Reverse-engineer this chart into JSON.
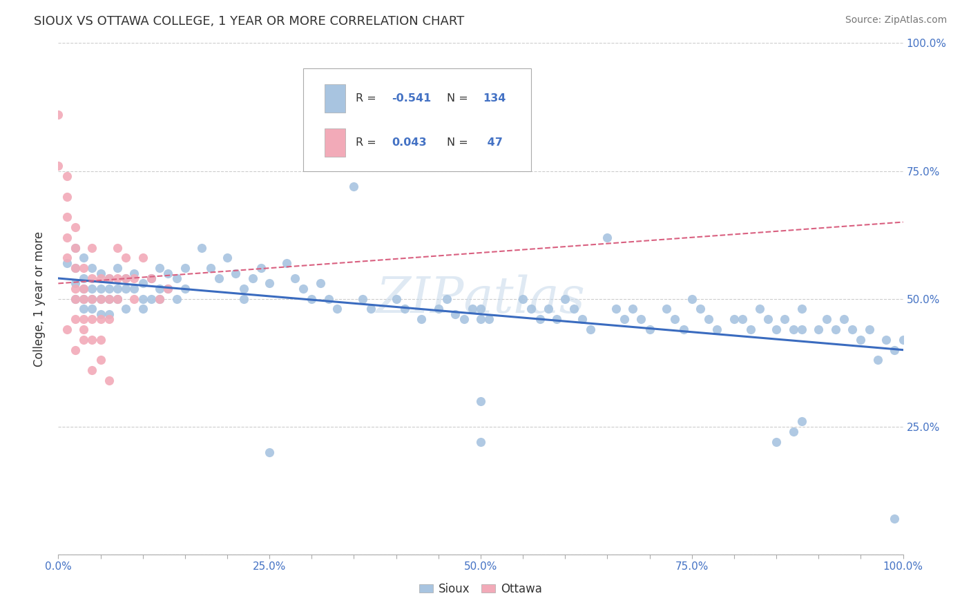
{
  "title": "SIOUX VS OTTAWA COLLEGE, 1 YEAR OR MORE CORRELATION CHART",
  "source": "Source: ZipAtlas.com",
  "ylabel": "College, 1 year or more",
  "xlim": [
    0.0,
    1.0
  ],
  "ylim": [
    0.0,
    1.0
  ],
  "xtick_labels": [
    "0.0%",
    "",
    "",
    "",
    "",
    "25.0%",
    "",
    "",
    "",
    "",
    "50.0%",
    "",
    "",
    "",
    "",
    "75.0%",
    "",
    "",
    "",
    "",
    "100.0%"
  ],
  "xtick_vals": [
    0.0,
    0.05,
    0.1,
    0.15,
    0.2,
    0.25,
    0.3,
    0.35,
    0.4,
    0.45,
    0.5,
    0.55,
    0.6,
    0.65,
    0.7,
    0.75,
    0.8,
    0.85,
    0.9,
    0.95,
    1.0
  ],
  "ytick_labels": [
    "",
    "25.0%",
    "50.0%",
    "75.0%",
    "100.0%"
  ],
  "ytick_vals": [
    0.0,
    0.25,
    0.5,
    0.75,
    1.0
  ],
  "sioux_color": "#a8c4e0",
  "ottawa_color": "#f2aab8",
  "sioux_line_color": "#3a6bbf",
  "ottawa_line_color": "#d96080",
  "background_color": "#ffffff",
  "grid_color": "#cccccc",
  "watermark_color": "#c5d8ea",
  "sioux_points": [
    [
      0.01,
      0.57
    ],
    [
      0.02,
      0.6
    ],
    [
      0.02,
      0.56
    ],
    [
      0.02,
      0.53
    ],
    [
      0.02,
      0.5
    ],
    [
      0.03,
      0.58
    ],
    [
      0.03,
      0.54
    ],
    [
      0.03,
      0.52
    ],
    [
      0.03,
      0.5
    ],
    [
      0.03,
      0.48
    ],
    [
      0.04,
      0.56
    ],
    [
      0.04,
      0.52
    ],
    [
      0.04,
      0.5
    ],
    [
      0.04,
      0.48
    ],
    [
      0.05,
      0.55
    ],
    [
      0.05,
      0.52
    ],
    [
      0.05,
      0.5
    ],
    [
      0.05,
      0.47
    ],
    [
      0.06,
      0.54
    ],
    [
      0.06,
      0.52
    ],
    [
      0.06,
      0.5
    ],
    [
      0.06,
      0.47
    ],
    [
      0.07,
      0.56
    ],
    [
      0.07,
      0.52
    ],
    [
      0.07,
      0.5
    ],
    [
      0.08,
      0.54
    ],
    [
      0.08,
      0.52
    ],
    [
      0.08,
      0.48
    ],
    [
      0.09,
      0.55
    ],
    [
      0.09,
      0.52
    ],
    [
      0.1,
      0.53
    ],
    [
      0.1,
      0.5
    ],
    [
      0.1,
      0.48
    ],
    [
      0.11,
      0.54
    ],
    [
      0.11,
      0.5
    ],
    [
      0.12,
      0.56
    ],
    [
      0.12,
      0.52
    ],
    [
      0.12,
      0.5
    ],
    [
      0.13,
      0.55
    ],
    [
      0.13,
      0.52
    ],
    [
      0.14,
      0.54
    ],
    [
      0.14,
      0.5
    ],
    [
      0.15,
      0.56
    ],
    [
      0.15,
      0.52
    ],
    [
      0.17,
      0.6
    ],
    [
      0.18,
      0.56
    ],
    [
      0.19,
      0.54
    ],
    [
      0.2,
      0.58
    ],
    [
      0.21,
      0.55
    ],
    [
      0.22,
      0.52
    ],
    [
      0.22,
      0.5
    ],
    [
      0.23,
      0.54
    ],
    [
      0.24,
      0.56
    ],
    [
      0.25,
      0.53
    ],
    [
      0.27,
      0.57
    ],
    [
      0.28,
      0.54
    ],
    [
      0.29,
      0.52
    ],
    [
      0.3,
      0.5
    ],
    [
      0.31,
      0.53
    ],
    [
      0.32,
      0.5
    ],
    [
      0.33,
      0.48
    ],
    [
      0.35,
      0.72
    ],
    [
      0.36,
      0.5
    ],
    [
      0.37,
      0.48
    ],
    [
      0.4,
      0.5
    ],
    [
      0.41,
      0.48
    ],
    [
      0.43,
      0.46
    ],
    [
      0.45,
      0.48
    ],
    [
      0.46,
      0.5
    ],
    [
      0.47,
      0.47
    ],
    [
      0.48,
      0.46
    ],
    [
      0.49,
      0.48
    ],
    [
      0.5,
      0.46
    ],
    [
      0.5,
      0.48
    ],
    [
      0.51,
      0.46
    ],
    [
      0.55,
      0.5
    ],
    [
      0.56,
      0.48
    ],
    [
      0.57,
      0.46
    ],
    [
      0.58,
      0.48
    ],
    [
      0.59,
      0.46
    ],
    [
      0.6,
      0.5
    ],
    [
      0.61,
      0.48
    ],
    [
      0.62,
      0.46
    ],
    [
      0.63,
      0.44
    ],
    [
      0.65,
      0.62
    ],
    [
      0.66,
      0.48
    ],
    [
      0.67,
      0.46
    ],
    [
      0.68,
      0.48
    ],
    [
      0.69,
      0.46
    ],
    [
      0.7,
      0.44
    ],
    [
      0.72,
      0.48
    ],
    [
      0.73,
      0.46
    ],
    [
      0.74,
      0.44
    ],
    [
      0.75,
      0.5
    ],
    [
      0.76,
      0.48
    ],
    [
      0.77,
      0.46
    ],
    [
      0.78,
      0.44
    ],
    [
      0.8,
      0.46
    ],
    [
      0.81,
      0.46
    ],
    [
      0.82,
      0.44
    ],
    [
      0.83,
      0.48
    ],
    [
      0.84,
      0.46
    ],
    [
      0.85,
      0.44
    ],
    [
      0.86,
      0.46
    ],
    [
      0.87,
      0.44
    ],
    [
      0.88,
      0.48
    ],
    [
      0.88,
      0.44
    ],
    [
      0.9,
      0.44
    ],
    [
      0.91,
      0.46
    ],
    [
      0.92,
      0.44
    ],
    [
      0.93,
      0.46
    ],
    [
      0.94,
      0.44
    ],
    [
      0.85,
      0.22
    ],
    [
      0.87,
      0.24
    ],
    [
      0.88,
      0.26
    ],
    [
      0.95,
      0.42
    ],
    [
      0.96,
      0.44
    ],
    [
      0.97,
      0.38
    ],
    [
      0.98,
      0.42
    ],
    [
      0.99,
      0.4
    ],
    [
      1.0,
      0.42
    ],
    [
      0.99,
      0.07
    ],
    [
      0.5,
      0.3
    ],
    [
      0.5,
      0.22
    ],
    [
      0.25,
      0.2
    ]
  ],
  "ottawa_points": [
    [
      0.0,
      0.86
    ],
    [
      0.0,
      0.76
    ],
    [
      0.01,
      0.74
    ],
    [
      0.01,
      0.7
    ],
    [
      0.01,
      0.66
    ],
    [
      0.01,
      0.62
    ],
    [
      0.01,
      0.58
    ],
    [
      0.02,
      0.64
    ],
    [
      0.02,
      0.6
    ],
    [
      0.02,
      0.56
    ],
    [
      0.02,
      0.52
    ],
    [
      0.02,
      0.5
    ],
    [
      0.02,
      0.46
    ],
    [
      0.03,
      0.56
    ],
    [
      0.03,
      0.52
    ],
    [
      0.03,
      0.5
    ],
    [
      0.03,
      0.46
    ],
    [
      0.03,
      0.44
    ],
    [
      0.03,
      0.42
    ],
    [
      0.04,
      0.6
    ],
    [
      0.04,
      0.54
    ],
    [
      0.04,
      0.5
    ],
    [
      0.04,
      0.46
    ],
    [
      0.04,
      0.42
    ],
    [
      0.05,
      0.54
    ],
    [
      0.05,
      0.5
    ],
    [
      0.05,
      0.46
    ],
    [
      0.05,
      0.42
    ],
    [
      0.05,
      0.38
    ],
    [
      0.06,
      0.54
    ],
    [
      0.06,
      0.5
    ],
    [
      0.06,
      0.46
    ],
    [
      0.07,
      0.6
    ],
    [
      0.07,
      0.54
    ],
    [
      0.07,
      0.5
    ],
    [
      0.08,
      0.58
    ],
    [
      0.08,
      0.54
    ],
    [
      0.09,
      0.54
    ],
    [
      0.09,
      0.5
    ],
    [
      0.1,
      0.58
    ],
    [
      0.11,
      0.54
    ],
    [
      0.12,
      0.5
    ],
    [
      0.13,
      0.52
    ],
    [
      0.01,
      0.44
    ],
    [
      0.02,
      0.4
    ],
    [
      0.04,
      0.36
    ],
    [
      0.06,
      0.34
    ]
  ],
  "sioux_line": [
    0.0,
    0.54,
    1.0,
    0.4
  ],
  "ottawa_line": [
    0.0,
    0.53,
    1.0,
    0.65
  ]
}
